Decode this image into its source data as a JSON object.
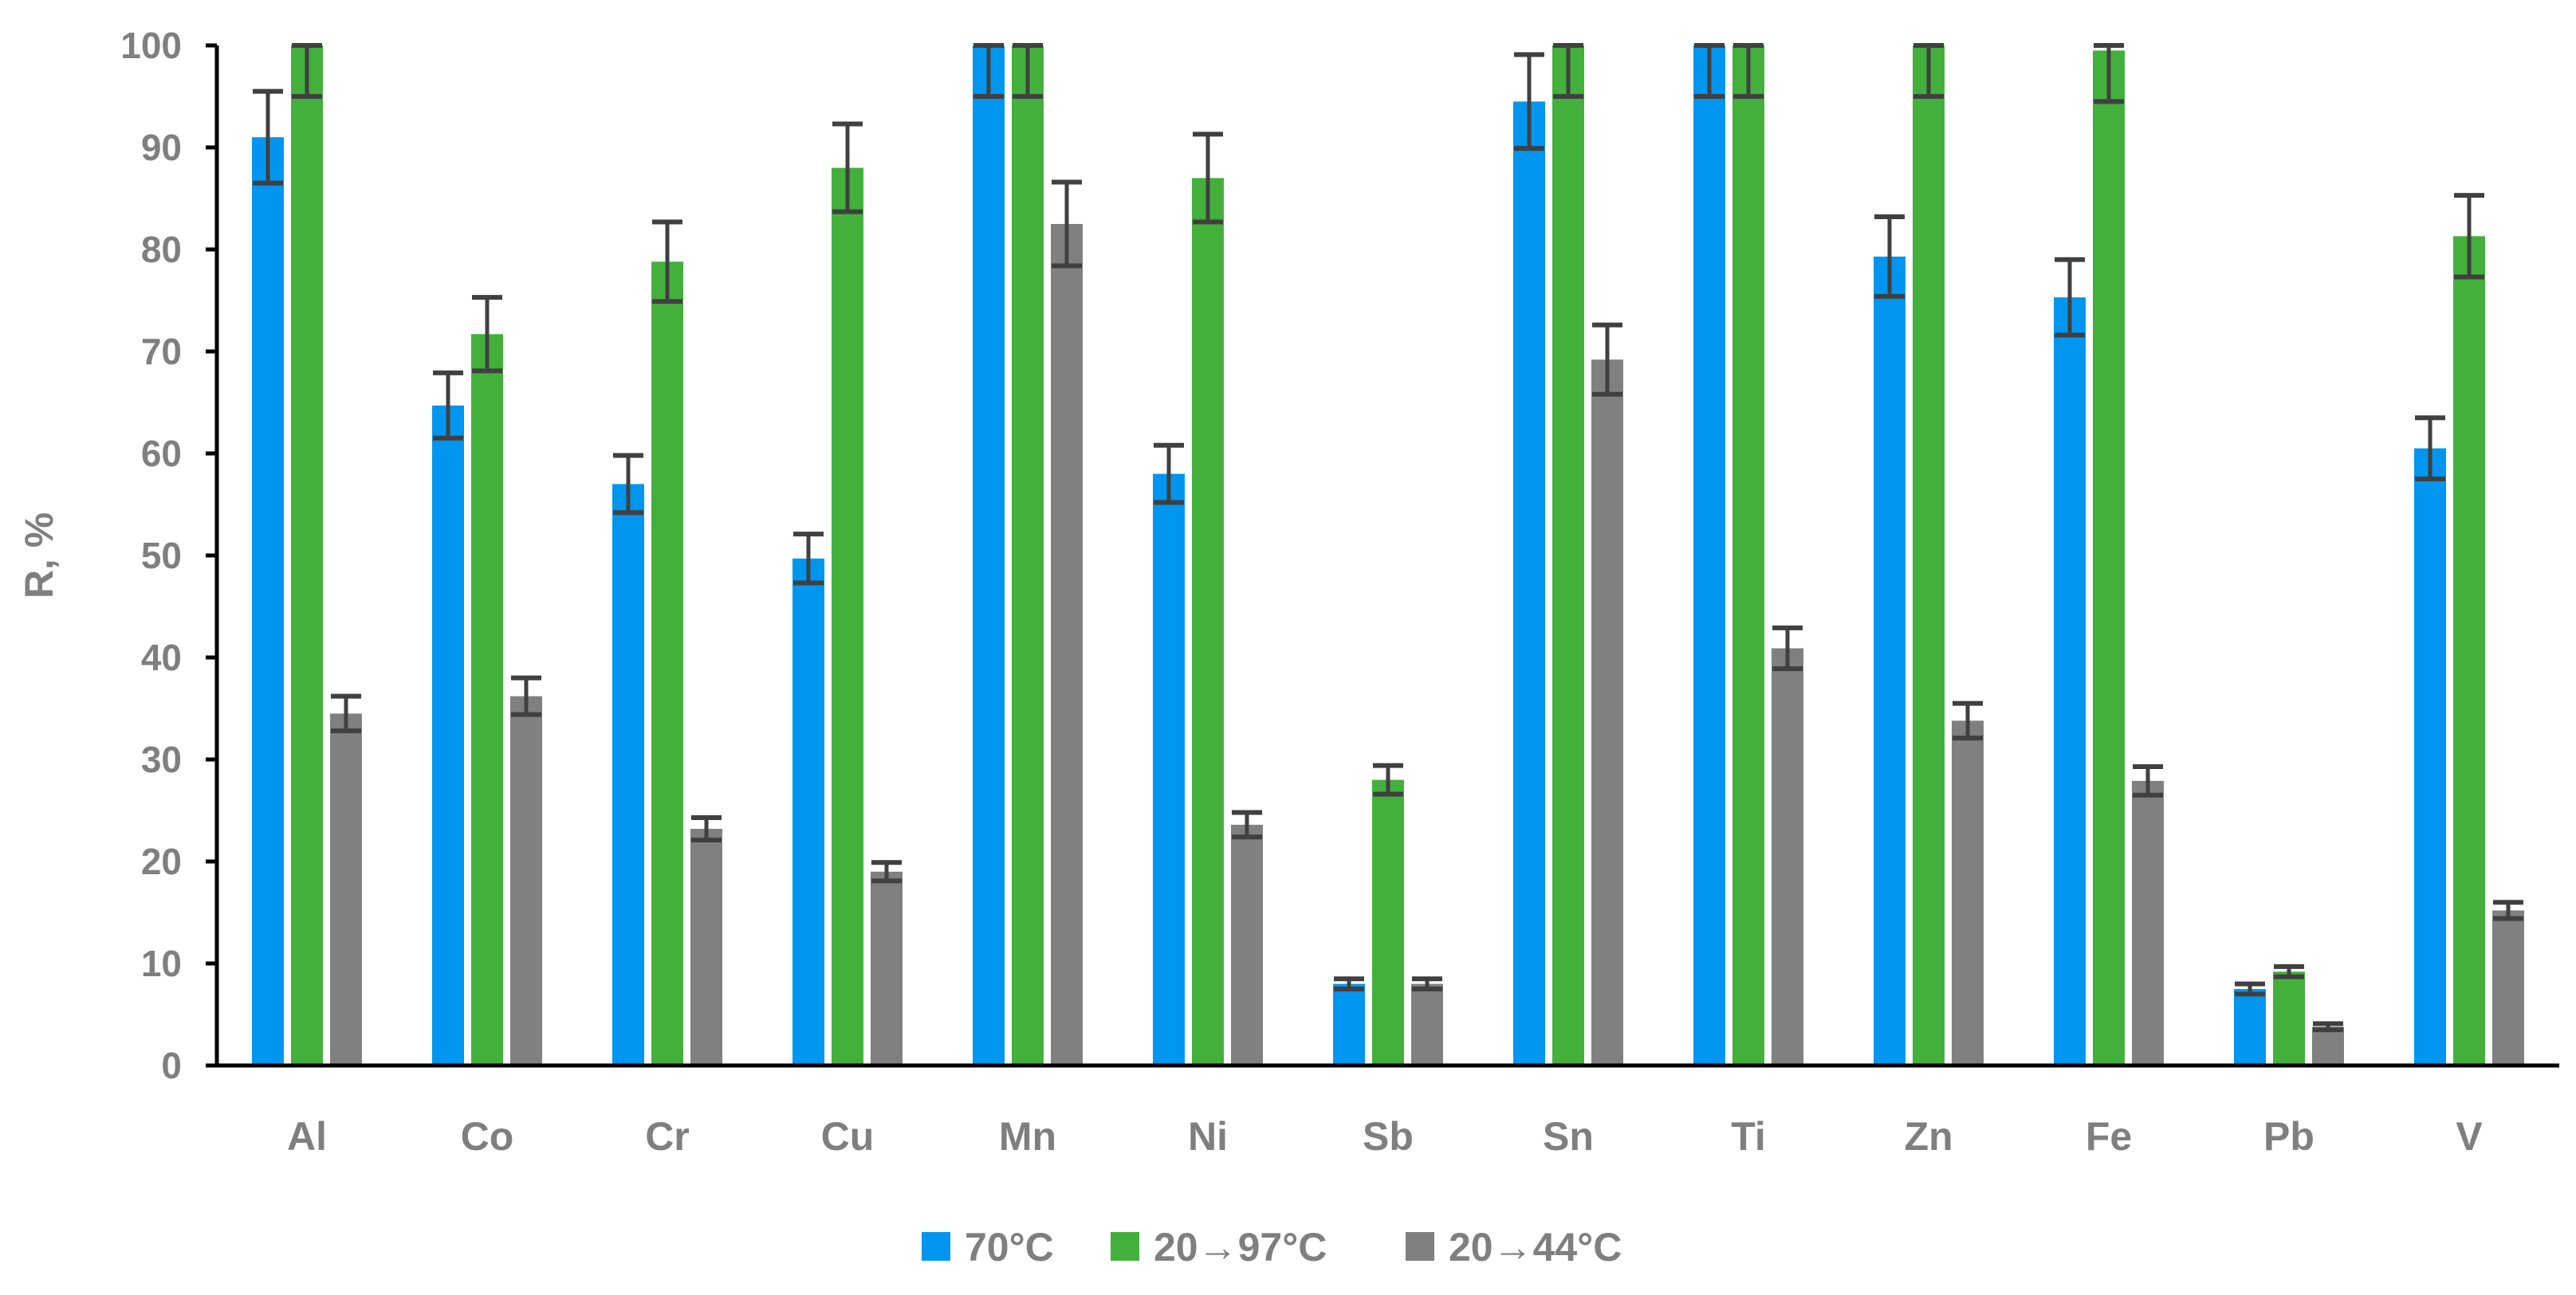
{
  "chart_data": {
    "type": "bar",
    "title": "",
    "xlabel": "",
    "ylabel": "R, %",
    "ylim": [
      0,
      100
    ],
    "yticks": [
      0,
      10,
      20,
      30,
      40,
      50,
      60,
      70,
      80,
      90,
      100
    ],
    "grid": false,
    "legend_position": "bottom",
    "categories": [
      "Al",
      "Co",
      "Cr",
      "Cu",
      "Mn",
      "Ni",
      "Sb",
      "Sn",
      "Ti",
      "Zn",
      "Fe",
      "Pb",
      "V"
    ],
    "series": [
      {
        "name": "70°C",
        "color": "#0096f0",
        "values": [
          91,
          64.7,
          57,
          49.7,
          100,
          58,
          8,
          94.5,
          100,
          79.3,
          75.3,
          7.5,
          60.5
        ],
        "errors": [
          4.5,
          3.2,
          2.8,
          2.4,
          5,
          2.8,
          0.5,
          4.6,
          5,
          3.9,
          3.7,
          0.5,
          3
        ]
      },
      {
        "name": "20→97°C",
        "color": "#43b03c",
        "values": [
          100,
          71.7,
          78.8,
          88,
          100,
          87,
          28,
          100,
          100,
          100,
          99.5,
          9.2,
          81.3
        ],
        "errors": [
          5,
          3.6,
          3.9,
          4.3,
          5,
          4.3,
          1.4,
          5,
          5,
          5,
          5,
          0.5,
          4
        ]
      },
      {
        "name": "20→44°C",
        "color": "#808080",
        "values": [
          34.5,
          36.2,
          23.2,
          19,
          82.5,
          23.6,
          8,
          69.2,
          40.9,
          33.8,
          27.9,
          3.8,
          15.2
        ],
        "errors": [
          1.7,
          1.8,
          1.1,
          0.9,
          4.1,
          1.2,
          0.5,
          3.4,
          2,
          1.7,
          1.4,
          0.3,
          0.8
        ]
      }
    ]
  }
}
